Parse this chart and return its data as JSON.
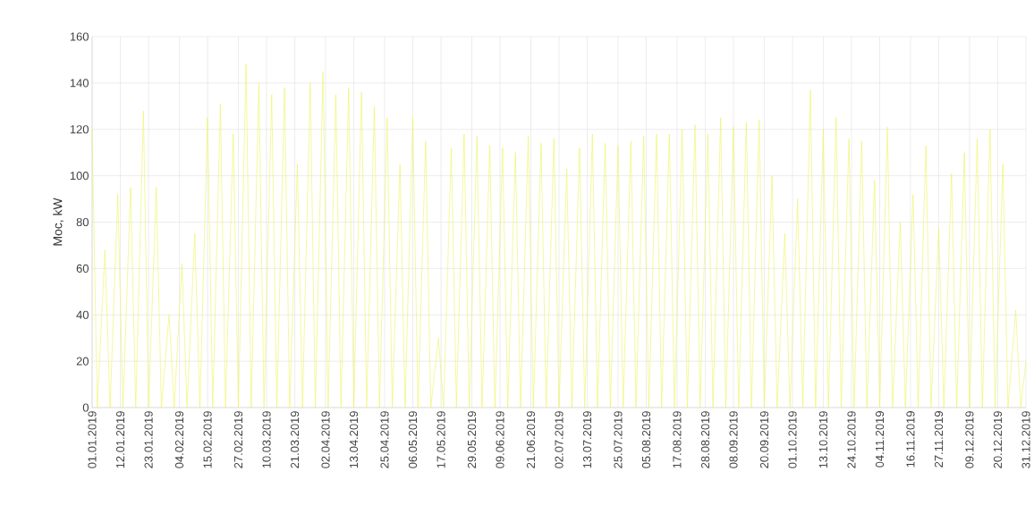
{
  "chart_data": {
    "type": "line",
    "ylabel": "Moc, kW",
    "xlim": [
      "2019-01-01",
      "2019-12-31"
    ],
    "ylim": [
      0,
      160
    ],
    "yticks": [
      0,
      20,
      40,
      60,
      80,
      100,
      120,
      140,
      160
    ],
    "xticks": [
      {
        "value": "2019-01-01",
        "label": "01.01.2019"
      },
      {
        "value": "2019-01-12",
        "label": "12.01.2019"
      },
      {
        "value": "2019-01-23",
        "label": "23.01.2019"
      },
      {
        "value": "2019-02-04",
        "label": "04.02.2019"
      },
      {
        "value": "2019-02-15",
        "label": "15.02.2019"
      },
      {
        "value": "2019-02-27",
        "label": "27.02.2019"
      },
      {
        "value": "2019-03-10",
        "label": "10.03.2019"
      },
      {
        "value": "2019-03-21",
        "label": "21.03.2019"
      },
      {
        "value": "2019-04-02",
        "label": "02.04.2019"
      },
      {
        "value": "2019-04-13",
        "label": "13.04.2019"
      },
      {
        "value": "2019-04-25",
        "label": "25.04.2019"
      },
      {
        "value": "2019-05-06",
        "label": "06.05.2019"
      },
      {
        "value": "2019-05-17",
        "label": "17.05.2019"
      },
      {
        "value": "2019-05-29",
        "label": "29.05.2019"
      },
      {
        "value": "2019-06-09",
        "label": "09.06.2019"
      },
      {
        "value": "2019-06-21",
        "label": "21.06.2019"
      },
      {
        "value": "2019-07-02",
        "label": "02.07.2019"
      },
      {
        "value": "2019-07-13",
        "label": "13.07.2019"
      },
      {
        "value": "2019-07-25",
        "label": "25.07.2019"
      },
      {
        "value": "2019-08-05",
        "label": "05.08.2019"
      },
      {
        "value": "2019-08-17",
        "label": "17.08.2019"
      },
      {
        "value": "2019-08-28",
        "label": "28.08.2019"
      },
      {
        "value": "2019-09-08",
        "label": "08.09.2019"
      },
      {
        "value": "2019-09-20",
        "label": "20.09.2019"
      },
      {
        "value": "2019-10-01",
        "label": "01.10.2019"
      },
      {
        "value": "2019-10-13",
        "label": "13.10.2019"
      },
      {
        "value": "2019-10-24",
        "label": "24.10.2019"
      },
      {
        "value": "2019-11-04",
        "label": "04.11.2019"
      },
      {
        "value": "2019-11-16",
        "label": "16.11.2019"
      },
      {
        "value": "2019-11-27",
        "label": "27.11.2019"
      },
      {
        "value": "2019-12-09",
        "label": "09.12.2019"
      },
      {
        "value": "2019-12-20",
        "label": "20.12.2019"
      },
      {
        "value": "2019-12-31",
        "label": "31.12.2019"
      }
    ],
    "grid": true,
    "legend": false,
    "marker": "none",
    "line_style": "solid",
    "series": [
      {
        "color": "#eef35b",
        "x": [
          "2019-01-01",
          "2019-01-03",
          "2019-01-06",
          "2019-01-08",
          "2019-01-11",
          "2019-01-13",
          "2019-01-16",
          "2019-01-18",
          "2019-01-21",
          "2019-01-23",
          "2019-01-26",
          "2019-01-28",
          "2019-01-31",
          "2019-02-02",
          "2019-02-05",
          "2019-02-07",
          "2019-02-10",
          "2019-02-12",
          "2019-02-15",
          "2019-02-17",
          "2019-02-20",
          "2019-02-22",
          "2019-02-25",
          "2019-02-27",
          "2019-03-02",
          "2019-03-04",
          "2019-03-07",
          "2019-03-09",
          "2019-03-12",
          "2019-03-14",
          "2019-03-17",
          "2019-03-19",
          "2019-03-22",
          "2019-03-24",
          "2019-03-27",
          "2019-03-29",
          "2019-04-01",
          "2019-04-03",
          "2019-04-06",
          "2019-04-08",
          "2019-04-11",
          "2019-04-13",
          "2019-04-16",
          "2019-04-18",
          "2019-04-21",
          "2019-04-23",
          "2019-04-26",
          "2019-04-28",
          "2019-05-01",
          "2019-05-03",
          "2019-05-06",
          "2019-05-08",
          "2019-05-11",
          "2019-05-13",
          "2019-05-16",
          "2019-05-18",
          "2019-05-21",
          "2019-05-23",
          "2019-05-26",
          "2019-05-28",
          "2019-05-31",
          "2019-06-02",
          "2019-06-05",
          "2019-06-07",
          "2019-06-10",
          "2019-06-12",
          "2019-06-15",
          "2019-06-17",
          "2019-06-20",
          "2019-06-22",
          "2019-06-25",
          "2019-06-27",
          "2019-06-30",
          "2019-07-02",
          "2019-07-05",
          "2019-07-07",
          "2019-07-10",
          "2019-07-12",
          "2019-07-15",
          "2019-07-17",
          "2019-07-20",
          "2019-07-22",
          "2019-07-25",
          "2019-07-27",
          "2019-07-30",
          "2019-08-01",
          "2019-08-04",
          "2019-08-06",
          "2019-08-09",
          "2019-08-11",
          "2019-08-14",
          "2019-08-16",
          "2019-08-19",
          "2019-08-21",
          "2019-08-24",
          "2019-08-26",
          "2019-08-29",
          "2019-08-31",
          "2019-09-03",
          "2019-09-05",
          "2019-09-08",
          "2019-09-10",
          "2019-09-13",
          "2019-09-15",
          "2019-09-18",
          "2019-09-20",
          "2019-09-23",
          "2019-09-25",
          "2019-09-28",
          "2019-09-30",
          "2019-10-03",
          "2019-10-05",
          "2019-10-08",
          "2019-10-10",
          "2019-10-13",
          "2019-10-15",
          "2019-10-18",
          "2019-10-20",
          "2019-10-23",
          "2019-10-25",
          "2019-10-28",
          "2019-10-30",
          "2019-11-02",
          "2019-11-04",
          "2019-11-07",
          "2019-11-09",
          "2019-11-12",
          "2019-11-14",
          "2019-11-17",
          "2019-11-19",
          "2019-11-22",
          "2019-11-24",
          "2019-11-27",
          "2019-11-29",
          "2019-12-02",
          "2019-12-04",
          "2019-12-07",
          "2019-12-09",
          "2019-12-12",
          "2019-12-14",
          "2019-12-17",
          "2019-12-19",
          "2019-12-22",
          "2019-12-24",
          "2019-12-27",
          "2019-12-29",
          "2019-12-31"
        ],
        "values": [
          120,
          0,
          68,
          0,
          92,
          0,
          95,
          0,
          128,
          0,
          95,
          0,
          40,
          0,
          62,
          0,
          75,
          0,
          125,
          0,
          131,
          0,
          118,
          0,
          148,
          0,
          140,
          0,
          135,
          0,
          138,
          0,
          105,
          0,
          140,
          0,
          145,
          0,
          135,
          0,
          138,
          0,
          136,
          0,
          130,
          0,
          125,
          0,
          105,
          0,
          125,
          0,
          115,
          0,
          30,
          0,
          112,
          0,
          118,
          0,
          117,
          0,
          113,
          0,
          112,
          0,
          110,
          0,
          117,
          0,
          114,
          0,
          116,
          0,
          103,
          0,
          112,
          0,
          118,
          0,
          114,
          0,
          113,
          0,
          115,
          0,
          117,
          0,
          118,
          0,
          118,
          0,
          120,
          0,
          122,
          0,
          118,
          0,
          125,
          0,
          121,
          0,
          123,
          0,
          124,
          0,
          100,
          0,
          75,
          0,
          90,
          0,
          137,
          0,
          120,
          0,
          125,
          0,
          116,
          0,
          115,
          0,
          98,
          0,
          121,
          0,
          80,
          0,
          92,
          0,
          113,
          0,
          78,
          0,
          101,
          0,
          110,
          0,
          116,
          0,
          120,
          0,
          105,
          0,
          42,
          0,
          20
        ]
      }
    ]
  }
}
